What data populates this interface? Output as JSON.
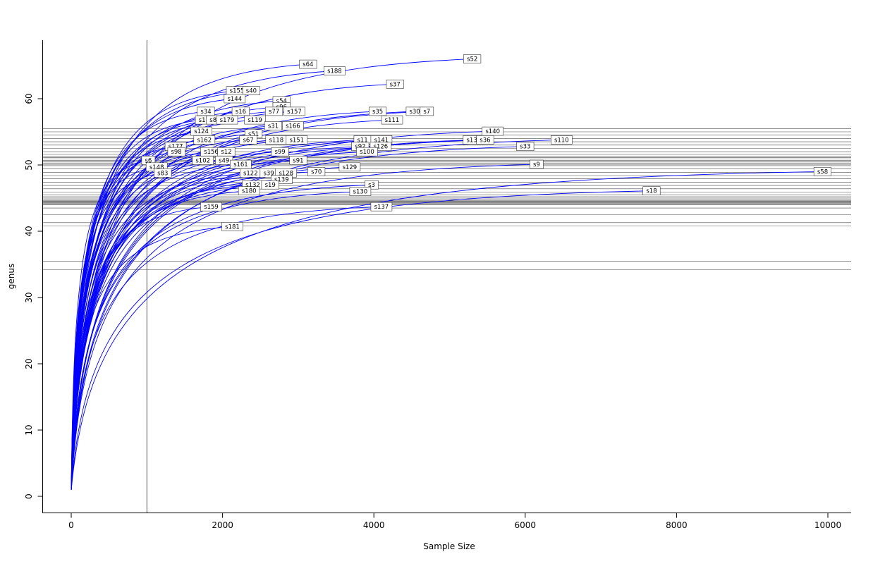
{
  "figure": {
    "background": "#ffffff",
    "curve_color": "#0000ff",
    "guide_color": "#4a4a4a",
    "axis_color": "#000000",
    "label_box_fill": "#ffffff",
    "label_box_border": "#333333"
  },
  "chart_data": {
    "type": "line",
    "title": "",
    "xlabel": "Sample Size",
    "ylabel": "genus",
    "x_ticks": [
      0,
      2000,
      4000,
      6000,
      8000,
      10000
    ],
    "y_ticks": [
      0,
      10,
      20,
      30,
      40,
      50,
      60
    ],
    "xlim": [
      -400,
      10400
    ],
    "ylim": [
      -2.5,
      68.5
    ],
    "grid": false,
    "legend": "none",
    "vertical_line_x": 1000,
    "horizontal_lines_y": [
      55.5,
      55.0,
      54.5,
      54.0,
      53.5,
      53.0,
      52.5,
      52.0,
      51.6,
      51.3,
      51.1,
      50.9,
      50.7,
      50.5,
      50.3,
      50.1,
      49.9,
      49.4,
      48.9,
      48.4,
      47.9,
      47.4,
      46.9,
      46.4,
      45.9,
      45.5,
      45.2,
      45.0,
      44.8,
      44.6,
      44.5,
      44.4,
      44.3,
      44.2,
      44.1,
      44.0,
      43.5,
      42.5,
      41.3,
      40.8,
      35.5,
      34.2
    ],
    "curve_start": {
      "x": 1,
      "y": 1
    },
    "series": [
      {
        "label": "s52",
        "end_x": 5300,
        "end_y": 66.0
      },
      {
        "label": "s64",
        "end_x": 3130,
        "end_y": 65.2
      },
      {
        "label": "s188",
        "end_x": 3480,
        "end_y": 64.2
      },
      {
        "label": "s37",
        "end_x": 4280,
        "end_y": 62.2
      },
      {
        "label": "s155",
        "end_x": 2190,
        "end_y": 61.2
      },
      {
        "label": "s40",
        "end_x": 2380,
        "end_y": 61.2
      },
      {
        "label": "s144",
        "end_x": 2160,
        "end_y": 60.0
      },
      {
        "label": "s54",
        "end_x": 2780,
        "end_y": 59.7
      },
      {
        "label": "s96",
        "end_x": 2780,
        "end_y": 58.8
      },
      {
        "label": "s34",
        "end_x": 1780,
        "end_y": 58.1
      },
      {
        "label": "s16",
        "end_x": 2240,
        "end_y": 58.1
      },
      {
        "label": "s77",
        "end_x": 2680,
        "end_y": 58.1
      },
      {
        "label": "s157",
        "end_x": 2950,
        "end_y": 58.1
      },
      {
        "label": "s35",
        "end_x": 4050,
        "end_y": 58.1
      },
      {
        "label": "s30",
        "end_x": 4540,
        "end_y": 58.1
      },
      {
        "label": "s7",
        "end_x": 4700,
        "end_y": 58.1
      },
      {
        "label": "s1",
        "end_x": 1730,
        "end_y": 56.8
      },
      {
        "label": "s85",
        "end_x": 1900,
        "end_y": 56.8
      },
      {
        "label": "s179",
        "end_x": 2060,
        "end_y": 56.8
      },
      {
        "label": "s119",
        "end_x": 2430,
        "end_y": 56.8
      },
      {
        "label": "s111",
        "end_x": 4240,
        "end_y": 56.8
      },
      {
        "label": "s31",
        "end_x": 2670,
        "end_y": 55.9
      },
      {
        "label": "s166",
        "end_x": 2930,
        "end_y": 55.9
      },
      {
        "label": "s124",
        "end_x": 1720,
        "end_y": 55.1
      },
      {
        "label": "s140",
        "end_x": 5570,
        "end_y": 55.1
      },
      {
        "label": "s51",
        "end_x": 2410,
        "end_y": 54.7
      },
      {
        "label": "s162",
        "end_x": 1760,
        "end_y": 53.8
      },
      {
        "label": "s67",
        "end_x": 2340,
        "end_y": 53.8
      },
      {
        "label": "s118",
        "end_x": 2710,
        "end_y": 53.8
      },
      {
        "label": "s151",
        "end_x": 2980,
        "end_y": 53.8
      },
      {
        "label": "s11",
        "end_x": 3850,
        "end_y": 53.8
      },
      {
        "label": "s141",
        "end_x": 4100,
        "end_y": 53.8
      },
      {
        "label": "s135",
        "end_x": 5320,
        "end_y": 53.8
      },
      {
        "label": "s36",
        "end_x": 5470,
        "end_y": 53.8
      },
      {
        "label": "s110",
        "end_x": 6480,
        "end_y": 53.8
      },
      {
        "label": "s177",
        "end_x": 1380,
        "end_y": 52.8
      },
      {
        "label": "s92",
        "end_x": 3820,
        "end_y": 52.8
      },
      {
        "label": "s126",
        "end_x": 4090,
        "end_y": 52.8
      },
      {
        "label": "s33",
        "end_x": 6000,
        "end_y": 52.8
      },
      {
        "label": "s98",
        "end_x": 1390,
        "end_y": 52.0
      },
      {
        "label": "s156",
        "end_x": 1850,
        "end_y": 52.0
      },
      {
        "label": "s12",
        "end_x": 2050,
        "end_y": 52.0
      },
      {
        "label": "s99",
        "end_x": 2760,
        "end_y": 52.0
      },
      {
        "label": "s100",
        "end_x": 3910,
        "end_y": 52.0
      },
      {
        "label": "s6",
        "end_x": 1020,
        "end_y": 50.7
      },
      {
        "label": "s102",
        "end_x": 1740,
        "end_y": 50.7
      },
      {
        "label": "s49",
        "end_x": 2020,
        "end_y": 50.7
      },
      {
        "label": "s91",
        "end_x": 3000,
        "end_y": 50.7
      },
      {
        "label": "s161",
        "end_x": 2240,
        "end_y": 50.1
      },
      {
        "label": "s9",
        "end_x": 6150,
        "end_y": 50.1
      },
      {
        "label": "s148",
        "end_x": 1130,
        "end_y": 49.7
      },
      {
        "label": "s129",
        "end_x": 3680,
        "end_y": 49.7
      },
      {
        "label": "s70",
        "end_x": 3240,
        "end_y": 49.0
      },
      {
        "label": "s58",
        "end_x": 9930,
        "end_y": 49.0
      },
      {
        "label": "s83",
        "end_x": 1210,
        "end_y": 48.8
      },
      {
        "label": "s122",
        "end_x": 2370,
        "end_y": 48.8
      },
      {
        "label": "s39",
        "end_x": 2610,
        "end_y": 48.8
      },
      {
        "label": "s128",
        "end_x": 2840,
        "end_y": 48.8
      },
      {
        "label": "s139",
        "end_x": 2780,
        "end_y": 47.8
      },
      {
        "label": "s132",
        "end_x": 2400,
        "end_y": 47.0
      },
      {
        "label": "s19",
        "end_x": 2630,
        "end_y": 47.0
      },
      {
        "label": "s3",
        "end_x": 3970,
        "end_y": 47.0
      },
      {
        "label": "s180",
        "end_x": 2350,
        "end_y": 46.1
      },
      {
        "label": "s130",
        "end_x": 3820,
        "end_y": 46.0
      },
      {
        "label": "s18",
        "end_x": 7670,
        "end_y": 46.1
      },
      {
        "label": "s159",
        "end_x": 1850,
        "end_y": 43.7
      },
      {
        "label": "s137",
        "end_x": 4100,
        "end_y": 43.7
      },
      {
        "label": "s181",
        "end_x": 2130,
        "end_y": 40.7
      }
    ]
  }
}
